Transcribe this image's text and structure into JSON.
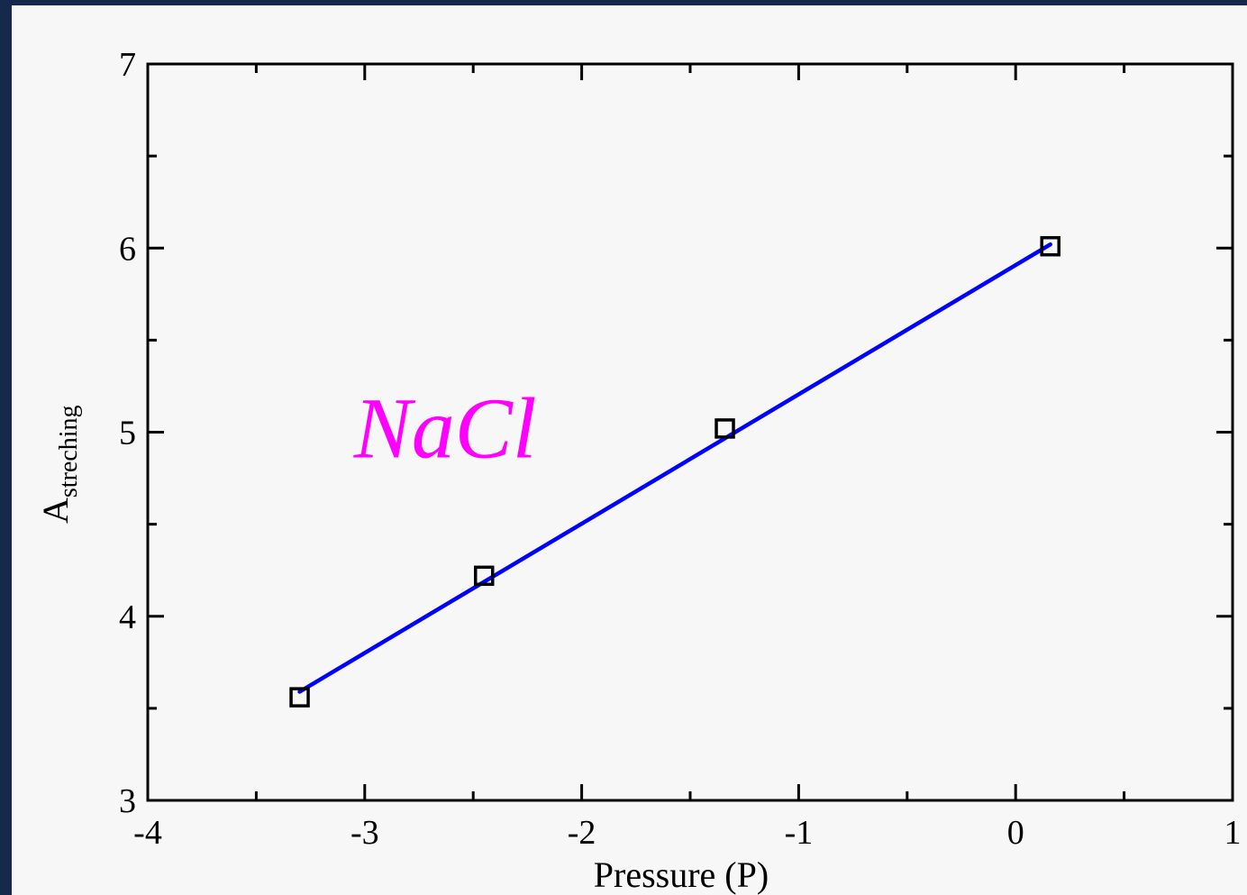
{
  "chart_data": {
    "type": "scatter",
    "xlabel": "Pressure (P)",
    "ylabel_main": "A",
    "ylabel_sub": "streching",
    "xlim": [
      -4,
      1
    ],
    "ylim": [
      3,
      7
    ],
    "x_ticks": [
      {
        "value": -4,
        "label": "-4"
      },
      {
        "value": -3,
        "label": "-3"
      },
      {
        "value": -2,
        "label": "-2"
      },
      {
        "value": -1,
        "label": "-1"
      },
      {
        "value": 0,
        "label": "0"
      },
      {
        "value": 1,
        "label": "1"
      }
    ],
    "y_ticks": [
      {
        "value": 3,
        "label": "3"
      },
      {
        "value": 4,
        "label": "4"
      },
      {
        "value": 5,
        "label": "5"
      },
      {
        "value": 6,
        "label": "6"
      },
      {
        "value": 7,
        "label": "7"
      }
    ],
    "x_minor_step": 0.5,
    "y_minor_step": 0.5,
    "points": [
      {
        "x": -3.3,
        "y": 3.56
      },
      {
        "x": -2.45,
        "y": 4.22
      },
      {
        "x": -1.34,
        "y": 5.02
      },
      {
        "x": 0.16,
        "y": 6.01
      }
    ],
    "fit_line": {
      "x": [
        -3.3,
        0.16
      ],
      "y": [
        3.59,
        6.02
      ],
      "color": "#0000ff"
    },
    "marker_color": "#000000",
    "annotation": {
      "text": "NaCl",
      "x": -3.05,
      "y": 5.0,
      "color": "#ff00ff"
    },
    "grid": false
  }
}
